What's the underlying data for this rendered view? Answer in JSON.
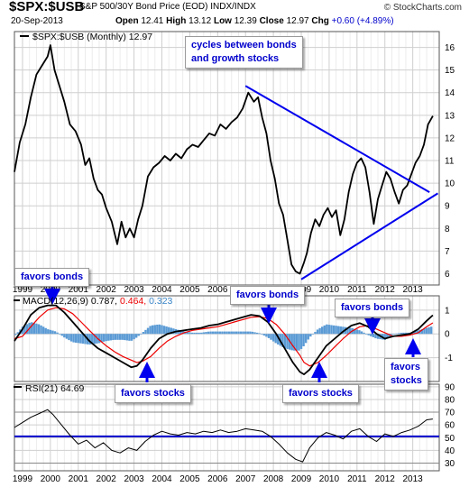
{
  "header": {
    "symbol": "$SPX:$USB",
    "subtitle": "S&P 500/30Y Bond Price (EOD)  INDX/INDX",
    "site": "© StockCharts.com",
    "date": "20-Sep-2013",
    "open_label": "Open",
    "open": "12.41",
    "high_label": "High",
    "high": "13.12",
    "low_label": "Low",
    "low": "12.39",
    "close_label": "Close",
    "close": "12.97",
    "chg_label": "Chg",
    "chg": "+0.60 (+4.89%)"
  },
  "legends": {
    "price": "$SPX:$USB (Monthly) 12.97",
    "macd_label": "MACD(12,26,9)",
    "macd_value": "0.787,",
    "macd_signal": "0.464,",
    "macd_hist": "0.323",
    "rsi": "RSI(21) 64.69"
  },
  "annotations": {
    "cycles_line1": "cycles between bonds",
    "cycles_line2": "and growth stocks",
    "favors_bonds_1": "favors bonds",
    "favors_bonds_2": "favors bonds",
    "favors_bonds_3": "favors bonds",
    "favors_stocks_1": "favors stocks",
    "favors_stocks_2": "favors stocks",
    "favors_stocks_3_line1": "favors",
    "favors_stocks_3_line2": "stocks"
  },
  "colors": {
    "price_line": "#000000",
    "trendline": "#0000ee",
    "macd_line": "#000000",
    "signal_line": "#ee0000",
    "histogram": "#5b9bd5",
    "rsi_line": "#000000",
    "rsi_ref_line": "#0000cc",
    "grid": "#cfcfcf",
    "callout_text": "#0000cc"
  },
  "chart_data": [
    {
      "type": "line",
      "name": "price",
      "x": [
        1998.71,
        1998.9,
        1999.1,
        1999.3,
        1999.5,
        1999.7,
        1999.9,
        2000.0,
        2000.15,
        2000.3,
        2000.5,
        2000.7,
        2000.9,
        2001.1,
        2001.25,
        2001.4,
        2001.55,
        2001.7,
        2001.85,
        2002.0,
        2002.2,
        2002.4,
        2002.55,
        2002.7,
        2002.85,
        2003.0,
        2003.15,
        2003.3,
        2003.5,
        2003.7,
        2003.9,
        2004.1,
        2004.3,
        2004.5,
        2004.7,
        2004.9,
        2005.1,
        2005.3,
        2005.5,
        2005.7,
        2005.9,
        2006.1,
        2006.3,
        2006.5,
        2006.7,
        2006.9,
        2007.1,
        2007.3,
        2007.45,
        2007.6,
        2007.75,
        2007.9,
        2008.05,
        2008.2,
        2008.35,
        2008.5,
        2008.65,
        2008.8,
        2008.95,
        2009.1,
        2009.2,
        2009.35,
        2009.5,
        2009.65,
        2009.8,
        2009.95,
        2010.1,
        2010.25,
        2010.4,
        2010.55,
        2010.7,
        2010.85,
        2011.0,
        2011.15,
        2011.3,
        2011.45,
        2011.6,
        2011.75,
        2011.9,
        2012.05,
        2012.2,
        2012.35,
        2012.5,
        2012.65,
        2012.8,
        2012.95,
        2013.1,
        2013.25,
        2013.4,
        2013.55,
        2013.72
      ],
      "y": [
        10.5,
        11.8,
        12.6,
        13.8,
        14.8,
        15.2,
        15.6,
        16.1,
        15.0,
        14.4,
        13.6,
        12.6,
        12.3,
        11.7,
        10.8,
        11.1,
        10.2,
        9.7,
        9.5,
        8.9,
        8.3,
        7.3,
        8.3,
        7.6,
        8.0,
        7.6,
        8.4,
        9.0,
        10.3,
        10.7,
        10.9,
        11.2,
        11.0,
        11.3,
        11.1,
        11.5,
        11.7,
        11.6,
        11.9,
        12.2,
        12.1,
        12.6,
        12.4,
        12.7,
        12.9,
        13.3,
        14.0,
        13.6,
        13.8,
        12.9,
        12.2,
        11.0,
        10.2,
        9.1,
        8.6,
        7.5,
        6.4,
        6.1,
        6.0,
        6.5,
        6.9,
        7.8,
        8.4,
        8.1,
        8.6,
        8.9,
        8.5,
        8.8,
        7.7,
        8.4,
        9.6,
        10.4,
        10.9,
        11.1,
        10.7,
        9.6,
        8.2,
        9.3,
        9.9,
        10.5,
        10.2,
        9.6,
        9.1,
        9.7,
        9.9,
        10.4,
        10.9,
        11.2,
        11.7,
        12.6,
        12.97
      ],
      "ylim": [
        5.5,
        16.7
      ],
      "yticks": [
        "6",
        "7",
        "8",
        "9",
        "10",
        "11",
        "12",
        "13",
        "14",
        "15",
        "16"
      ],
      "xlabels": [
        "1999",
        "2000",
        "2001",
        "2002",
        "2003",
        "2004",
        "2005",
        "2006",
        "2007",
        "2008",
        "2009",
        "2010",
        "2011",
        "2012",
        "2013"
      ]
    },
    {
      "type": "line",
      "name": "trendlines",
      "lines": [
        {
          "x": [
            2007.0,
            2013.6
          ],
          "y": [
            14.3,
            9.6
          ]
        },
        {
          "x": [
            2009.0,
            2013.9
          ],
          "y": [
            5.75,
            9.55
          ]
        }
      ]
    },
    {
      "type": "line",
      "name": "MACD(12,26,9)",
      "x": [
        1998.71,
        1999.0,
        1999.3,
        1999.6,
        1999.9,
        2000.2,
        2000.5,
        2000.8,
        2001.1,
        2001.4,
        2001.7,
        2002.0,
        2002.3,
        2002.6,
        2002.9,
        2003.1,
        2003.3,
        2003.6,
        2003.9,
        2004.2,
        2004.5,
        2004.8,
        2005.1,
        2005.4,
        2005.7,
        2006.0,
        2006.3,
        2006.6,
        2006.9,
        2007.2,
        2007.5,
        2007.8,
        2008.1,
        2008.4,
        2008.7,
        2008.95,
        2009.1,
        2009.3,
        2009.6,
        2009.9,
        2010.2,
        2010.5,
        2010.8,
        2011.1,
        2011.4,
        2011.7,
        2012.0,
        2012.3,
        2012.6,
        2012.9,
        2013.2,
        2013.5,
        2013.72
      ],
      "macd": [
        -0.3,
        0.2,
        0.8,
        1.1,
        1.2,
        1.2,
        0.9,
        0.5,
        0.1,
        -0.3,
        -0.6,
        -0.8,
        -1.0,
        -1.2,
        -1.4,
        -1.35,
        -1.1,
        -0.6,
        -0.2,
        0.0,
        0.1,
        0.15,
        0.2,
        0.25,
        0.35,
        0.4,
        0.5,
        0.6,
        0.7,
        0.8,
        0.75,
        0.5,
        0.0,
        -0.6,
        -1.2,
        -1.6,
        -1.7,
        -1.5,
        -1.0,
        -0.5,
        -0.2,
        0.1,
        0.35,
        0.45,
        0.3,
        0.0,
        -0.2,
        -0.1,
        -0.05,
        0.0,
        0.2,
        0.55,
        0.787
      ],
      "signal": [
        -0.2,
        -0.1,
        0.3,
        0.7,
        1.0,
        1.1,
        1.05,
        0.85,
        0.5,
        0.15,
        -0.2,
        -0.5,
        -0.75,
        -0.95,
        -1.1,
        -1.2,
        -1.15,
        -0.95,
        -0.6,
        -0.3,
        -0.1,
        0.05,
        0.15,
        0.2,
        0.25,
        0.3,
        0.4,
        0.5,
        0.6,
        0.7,
        0.72,
        0.65,
        0.4,
        0.0,
        -0.5,
        -0.9,
        -1.2,
        -1.35,
        -1.2,
        -0.9,
        -0.55,
        -0.2,
        0.1,
        0.3,
        0.35,
        0.2,
        0.05,
        -0.1,
        -0.1,
        -0.05,
        0.05,
        0.3,
        0.464
      ],
      "ylim": [
        -2.0,
        1.6
      ],
      "yticks": [
        "-1",
        "0",
        "1"
      ]
    },
    {
      "type": "line",
      "name": "RSI(21)",
      "x": [
        1998.71,
        1999.0,
        1999.3,
        1999.6,
        1999.9,
        2000.1,
        2000.4,
        2000.7,
        2001.0,
        2001.3,
        2001.6,
        2001.9,
        2002.2,
        2002.5,
        2002.8,
        2003.1,
        2003.4,
        2003.7,
        2004.0,
        2004.3,
        2004.6,
        2004.9,
        2005.2,
        2005.5,
        2005.8,
        2006.1,
        2006.4,
        2006.7,
        2007.0,
        2007.3,
        2007.6,
        2007.9,
        2008.2,
        2008.5,
        2008.8,
        2009.05,
        2009.3,
        2009.6,
        2009.9,
        2010.2,
        2010.5,
        2010.8,
        2011.1,
        2011.4,
        2011.7,
        2012.0,
        2012.3,
        2012.6,
        2012.9,
        2013.2,
        2013.5,
        2013.72
      ],
      "y": [
        58,
        62,
        66,
        69,
        72,
        68,
        60,
        52,
        45,
        48,
        42,
        46,
        40,
        38,
        42,
        40,
        47,
        52,
        55,
        53,
        52,
        54,
        53,
        55,
        54,
        56,
        54,
        55,
        57,
        56,
        55,
        51,
        45,
        38,
        33,
        31,
        42,
        50,
        54,
        52,
        49,
        55,
        57,
        51,
        47,
        53,
        51,
        54,
        56,
        59,
        64,
        64.69
      ],
      "ylim": [
        24,
        92
      ],
      "yticks": [
        "30",
        "40",
        "50",
        "60",
        "70",
        "80",
        "90"
      ],
      "reference": 51
    }
  ]
}
